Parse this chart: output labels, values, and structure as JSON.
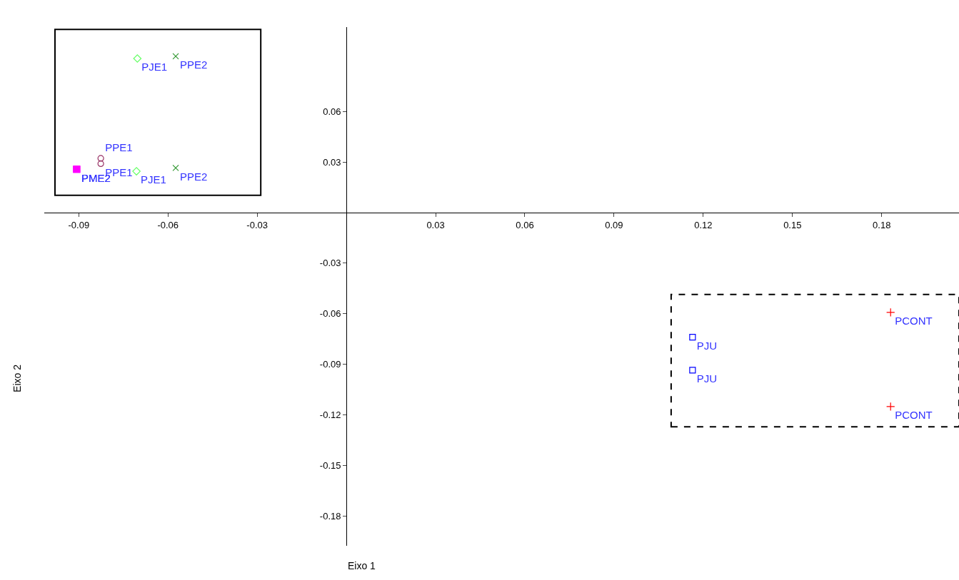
{
  "chart_data": {
    "type": "scatter",
    "xlabel": "Eixo 1",
    "ylabel": "Eixo 2",
    "xlim": [
      -0.1016,
      0.206
    ],
    "ylim": [
      -0.1976,
      0.11
    ],
    "xticks": [
      -0.09,
      -0.06,
      -0.03,
      0.03,
      0.06,
      0.09,
      0.12,
      0.15,
      0.18
    ],
    "yticks": [
      0.06,
      0.03,
      -0.03,
      -0.06,
      -0.09,
      -0.12,
      -0.15,
      -0.18
    ],
    "legend": false,
    "series": [
      {
        "name": "PJE1",
        "color": "#66ff66",
        "marker": "diamond",
        "x": [
          -0.0703,
          -0.0706
        ],
        "values": [
          0.0914,
          0.0245
        ]
      },
      {
        "name": "PPE2",
        "color": "#339933",
        "marker": "x",
        "x": [
          -0.0574,
          -0.0574
        ],
        "values": [
          0.0927,
          0.0265
        ]
      },
      {
        "name": "PPE1",
        "color": "#993366",
        "marker": "circle",
        "x": [
          -0.0826,
          -0.0826
        ],
        "values": [
          0.0322,
          0.029
        ]
      },
      {
        "name": "PME2",
        "color": "#ff00ff",
        "marker": "square",
        "x": [
          -0.0907,
          -0.0907
        ],
        "values": [
          0.0257,
          0.0257
        ]
      },
      {
        "name": "PJU",
        "color": "#0000ff",
        "marker": "square-open",
        "x": [
          0.1164,
          0.1164
        ],
        "values": [
          -0.0739,
          -0.0935
        ]
      },
      {
        "name": "PCONT",
        "color": "#ff0000",
        "marker": "cross",
        "x": [
          0.183,
          0.183
        ],
        "values": [
          -0.0592,
          -0.115
        ]
      }
    ]
  }
}
